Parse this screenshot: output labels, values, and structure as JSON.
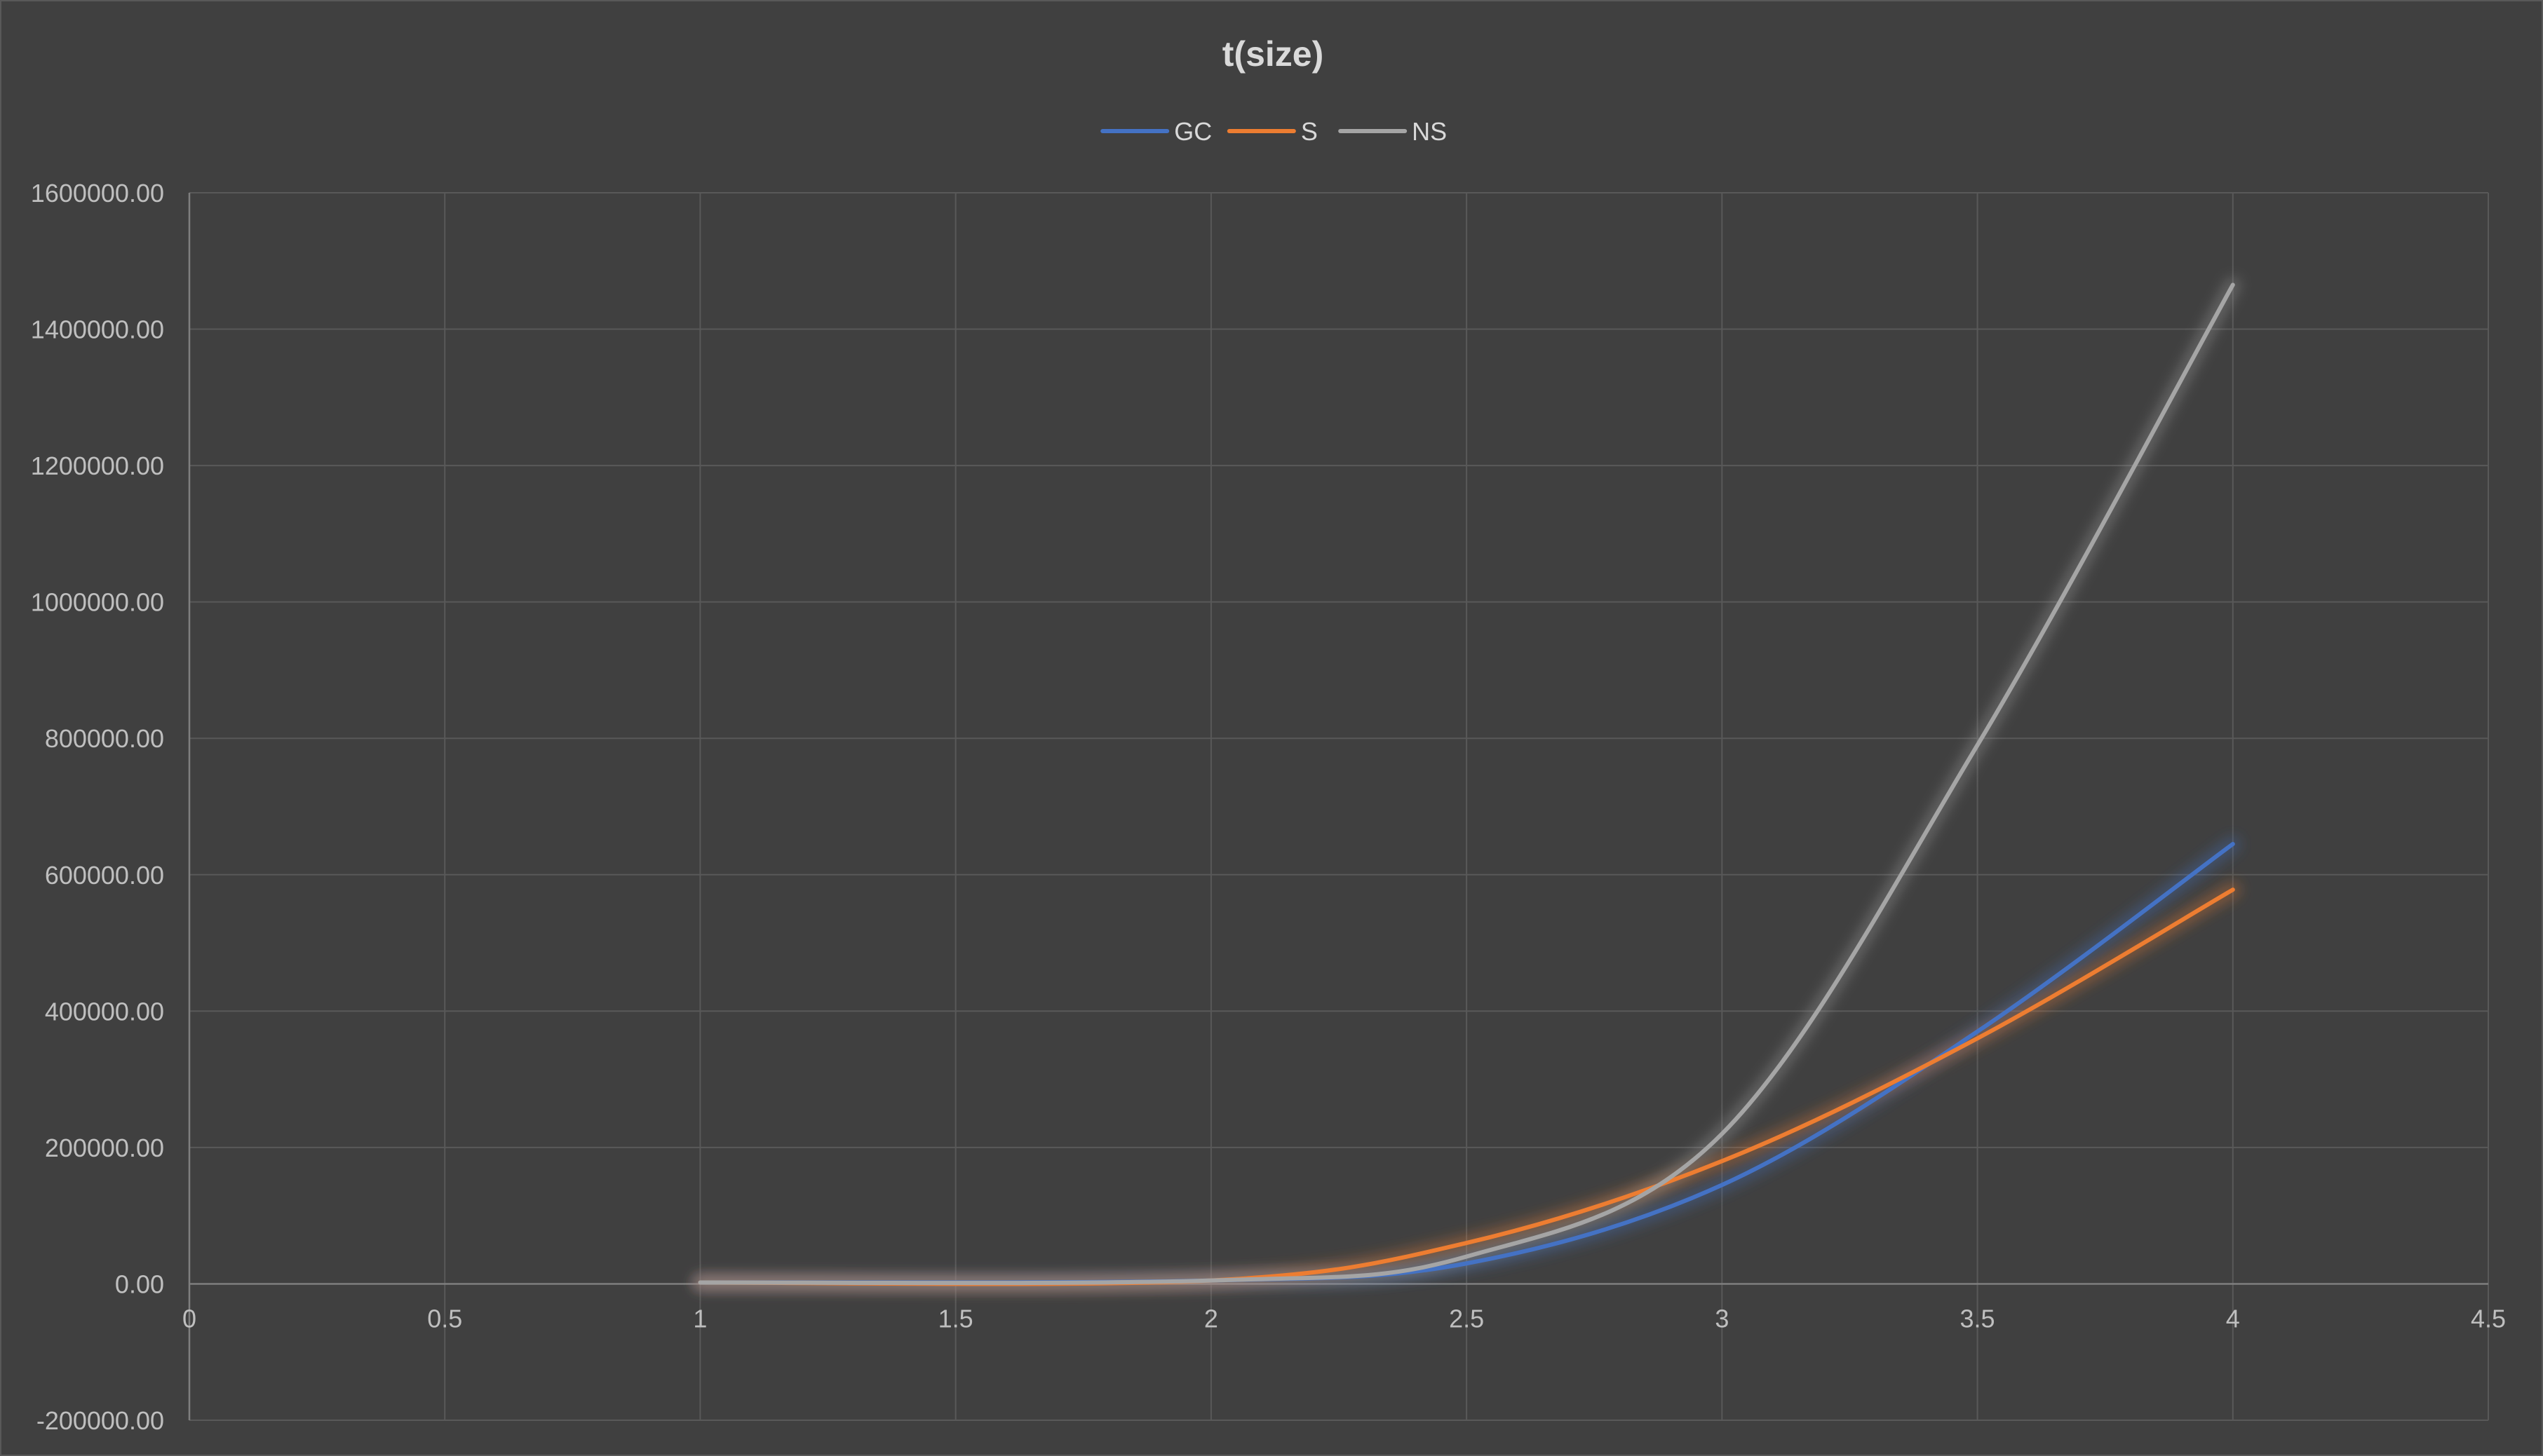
{
  "chart_data": {
    "type": "scatter",
    "title": "t(size)",
    "xlabel": "",
    "ylabel": "",
    "xlim": [
      0,
      4.5
    ],
    "ylim": [
      -200000,
      1600000
    ],
    "x_ticks": [
      0,
      0.5,
      1,
      1.5,
      2,
      2.5,
      3,
      3.5,
      4,
      4.5
    ],
    "x_tick_labels": [
      "0",
      "0.5",
      "1",
      "1.5",
      "2",
      "2.5",
      "3",
      "3.5",
      "4",
      "4.5"
    ],
    "y_ticks": [
      -200000,
      0,
      200000,
      400000,
      600000,
      800000,
      1000000,
      1200000,
      1400000,
      1600000
    ],
    "y_tick_labels": [
      "-200000.00",
      "0.00",
      "200000.00",
      "400000.00",
      "600000.00",
      "800000.00",
      "1000000.00",
      "1200000.00",
      "1400000.00",
      "1600000.00"
    ],
    "grid": true,
    "legend_position": "top",
    "smooth": true,
    "series": [
      {
        "name": "GC",
        "color": "#4472c4",
        "x": [
          1,
          2,
          2.5,
          3,
          3.5,
          4
        ],
        "values": [
          2000,
          5000,
          30000,
          145000,
          370000,
          645000
        ]
      },
      {
        "name": "S",
        "color": "#ed7d31",
        "x": [
          1,
          2,
          2.5,
          3,
          3.5,
          4
        ],
        "values": [
          2000,
          5000,
          60000,
          180000,
          360000,
          578000
        ]
      },
      {
        "name": "NS",
        "color": "#a5a5a5",
        "x": [
          1,
          2,
          2.5,
          3,
          3.5,
          4
        ],
        "values": [
          2000,
          5000,
          40000,
          220000,
          790000,
          1465000
        ]
      }
    ]
  }
}
